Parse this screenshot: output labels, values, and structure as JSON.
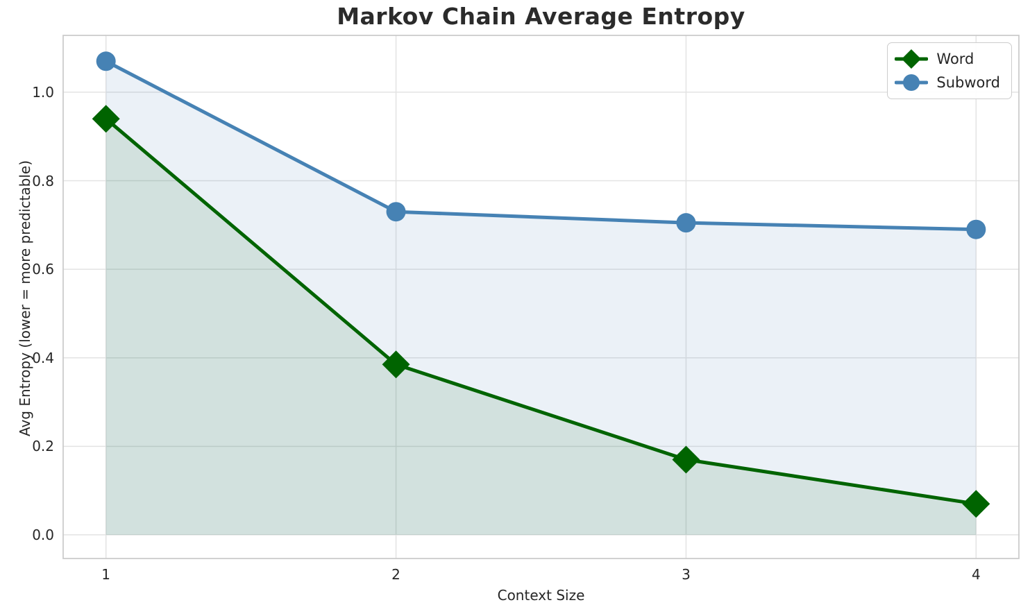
{
  "chart_data": {
    "type": "line",
    "title": "Markov Chain Average Entropy",
    "xlabel": "Context Size",
    "ylabel": "Avg Entropy (lower = more predictable)",
    "x": [
      1,
      2,
      3,
      4
    ],
    "xtick_labels": [
      "1",
      "2",
      "3",
      "4"
    ],
    "ytick_values": [
      0.0,
      0.2,
      0.4,
      0.6,
      0.8,
      1.0
    ],
    "ytick_labels": [
      "0.0",
      "0.2",
      "0.4",
      "0.6",
      "0.8",
      "1.0"
    ],
    "xlim": [
      0.85,
      4.15
    ],
    "ylim": [
      -0.055,
      1.13
    ],
    "grid": true,
    "legend_position": "upper right",
    "series": [
      {
        "name": "Word",
        "marker": "diamond",
        "color": "#006400",
        "fill": "rgba(0,100,0,0.11)",
        "fill_to": 0,
        "line_width": 5,
        "marker_size": 20,
        "values": [
          0.94,
          0.385,
          0.17,
          0.07
        ]
      },
      {
        "name": "Subword",
        "marker": "circle",
        "color": "#4682b4",
        "fill": "rgba(70,130,180,0.11)",
        "fill_to": 0,
        "line_width": 5,
        "marker_size": 14,
        "values": [
          1.07,
          0.73,
          0.705,
          0.69
        ]
      }
    ],
    "styles": {
      "grid_color": "#e3e3e3",
      "spine_color": "#cccccc",
      "text_color": "#262626",
      "title_color": "#2b2b2b",
      "plot_background": "#ffffff"
    }
  }
}
